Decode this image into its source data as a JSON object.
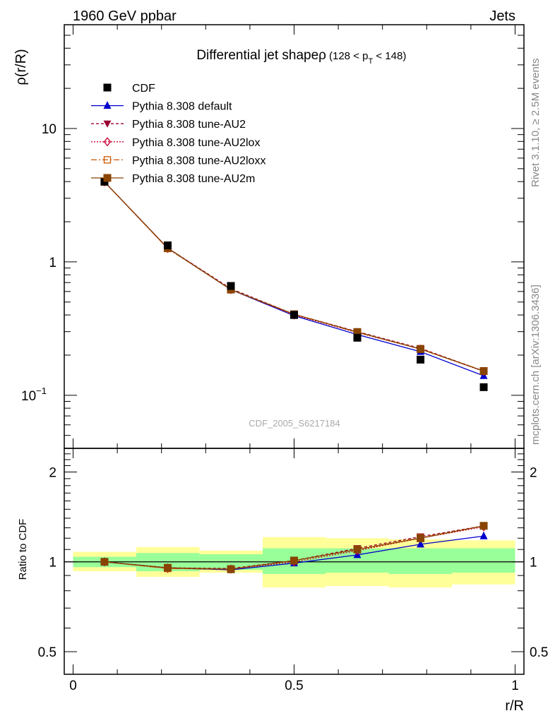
{
  "header": {
    "left": "1960 GeV ppbar",
    "right": "Jets"
  },
  "side_labels": {
    "top": "Rivet 3.1.10, ≥ 2.5M events",
    "bottom": "mcplots.cern.ch [arXiv:1306.3436]"
  },
  "watermark": "CDF_2005_S6217184",
  "chart_data": [
    {
      "type": "line",
      "title": "Differential jet shapeρ",
      "title_cut": {
        "prefix": "(128 < p",
        "sub": "T",
        "suffix": " < 148)"
      },
      "ylabel": "ρ(r/R)",
      "xlabel": "",
      "yscale": "log",
      "ylim": [
        0.04,
        60
      ],
      "xlim": [
        -0.02,
        1.02
      ],
      "y_tick_labels": [
        {
          "value": 10,
          "label": "10"
        },
        {
          "value": 1,
          "label": "1"
        },
        {
          "value": 0.1,
          "label": "10",
          "sup": "−1"
        }
      ],
      "legend_position": "top-left",
      "x": [
        0.071,
        0.214,
        0.357,
        0.5,
        0.643,
        0.786,
        0.929
      ],
      "series": [
        {
          "name": "CDF",
          "color": "#000000",
          "marker": "square-filled",
          "values": [
            4.0,
            1.33,
            0.66,
            0.4,
            0.27,
            0.185,
            0.115
          ]
        },
        {
          "name": "Pythia 8.308 default",
          "color": "#0000cc",
          "marker": "triangle-filled",
          "dash": "",
          "values": [
            3.98,
            1.27,
            0.62,
            0.395,
            0.285,
            0.212,
            0.14
          ]
        },
        {
          "name": "Pythia 8.308 tune-AU2",
          "color": "#990033",
          "marker": "triangle-down-filled",
          "dash": "4,3",
          "values": [
            3.98,
            1.27,
            0.63,
            0.405,
            0.3,
            0.225,
            0.152
          ]
        },
        {
          "name": "Pythia 8.308 tune-AU2lox",
          "color": "#cc0033",
          "marker": "diamond-open",
          "dash": "2,2",
          "values": [
            3.98,
            1.26,
            0.62,
            0.4,
            0.295,
            0.222,
            0.151
          ]
        },
        {
          "name": "Pythia 8.308 tune-AU2loxx",
          "color": "#cc5500",
          "marker": "square-open",
          "dash": "8,3,2,3",
          "values": [
            3.98,
            1.26,
            0.62,
            0.405,
            0.297,
            0.223,
            0.152
          ]
        },
        {
          "name": "Pythia 8.308 tune-AU2m",
          "color": "#884400",
          "marker": "square-filled",
          "dash": "",
          "values": [
            3.98,
            1.27,
            0.62,
            0.405,
            0.298,
            0.222,
            0.152
          ]
        }
      ]
    },
    {
      "type": "line",
      "title": "",
      "ylabel": "Ratio to CDF",
      "xlabel": "r/R",
      "yscale": "log",
      "ylim": [
        0.42,
        2.4
      ],
      "xlim": [
        -0.02,
        1.02
      ],
      "y_tick_labels": [
        {
          "value": 2,
          "label": "2"
        },
        {
          "value": 1,
          "label": "1"
        },
        {
          "value": 0.5,
          "label": "0.5"
        }
      ],
      "x_tick_labels": [
        {
          "value": 0,
          "label": "0"
        },
        {
          "value": 0.5,
          "label": "0.5"
        },
        {
          "value": 1,
          "label": "1"
        }
      ],
      "reference_line": 1,
      "bins": [
        0,
        0.143,
        0.286,
        0.429,
        0.571,
        0.714,
        0.857,
        1.0
      ],
      "band_inner": {
        "color": "#99ff99",
        "lo": [
          0.96,
          0.93,
          0.94,
          0.91,
          0.92,
          0.91,
          0.92
        ],
        "hi": [
          1.04,
          1.07,
          1.06,
          1.11,
          1.11,
          1.11,
          1.11
        ]
      },
      "band_outer": {
        "color": "#ffff99",
        "lo": [
          0.93,
          0.89,
          0.92,
          0.82,
          0.83,
          0.82,
          0.84
        ],
        "hi": [
          1.08,
          1.12,
          1.09,
          1.21,
          1.2,
          1.19,
          1.18
        ]
      },
      "x": [
        0.071,
        0.214,
        0.357,
        0.5,
        0.643,
        0.786,
        0.929
      ],
      "series": [
        {
          "name": "Pythia 8.308 default",
          "color": "#0000cc",
          "marker": "triangle-filled",
          "dash": "",
          "values": [
            1.0,
            0.955,
            0.94,
            0.99,
            1.055,
            1.145,
            1.22
          ]
        },
        {
          "name": "Pythia 8.308 tune-AU2",
          "color": "#990033",
          "marker": "triangle-down-filled",
          "dash": "4,3",
          "values": [
            1.0,
            0.955,
            0.95,
            1.01,
            1.11,
            1.215,
            1.32
          ]
        },
        {
          "name": "Pythia 8.308 tune-AU2lox",
          "color": "#cc0033",
          "marker": "diamond-open",
          "dash": "2,2",
          "values": [
            1.0,
            0.95,
            0.945,
            1.0,
            1.09,
            1.2,
            1.31
          ]
        },
        {
          "name": "Pythia 8.308 tune-AU2loxx",
          "color": "#cc5500",
          "marker": "square-open",
          "dash": "8,3,2,3",
          "values": [
            1.0,
            0.95,
            0.945,
            1.01,
            1.1,
            1.205,
            1.32
          ]
        },
        {
          "name": "Pythia 8.308 tune-AU2m",
          "color": "#884400",
          "marker": "square-filled",
          "dash": "",
          "values": [
            1.0,
            0.955,
            0.945,
            1.01,
            1.1,
            1.2,
            1.32
          ]
        }
      ]
    }
  ]
}
